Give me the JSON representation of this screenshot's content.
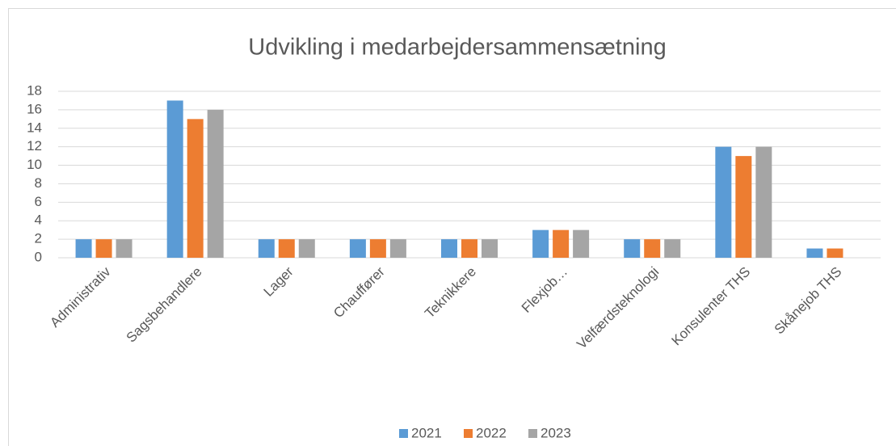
{
  "chart_data": {
    "type": "bar",
    "title": "Udvikling i medarbejdersammensætning",
    "categories": [
      "Administrativ",
      "Sagsbehandlere",
      "Lager",
      "Chauffører",
      "Teknikkere",
      "Flexjob…",
      "Velfærdsteknologi",
      "Konsulenter THS",
      "Skånejob THS"
    ],
    "series": [
      {
        "name": "2021",
        "color": "#5b9bd5",
        "values": [
          2,
          17,
          2,
          2,
          2,
          3,
          2,
          12,
          1
        ]
      },
      {
        "name": "2022",
        "color": "#ed7d31",
        "values": [
          2,
          15,
          2,
          2,
          2,
          3,
          2,
          11,
          1
        ]
      },
      {
        "name": "2023",
        "color": "#a5a5a5",
        "values": [
          2,
          16,
          2,
          2,
          2,
          3,
          2,
          12,
          null
        ]
      }
    ],
    "ylim": [
      0,
      18
    ],
    "yticks": [
      0,
      2,
      4,
      6,
      8,
      10,
      12,
      14,
      16,
      18
    ],
    "grid": true,
    "legend": "bottom"
  }
}
